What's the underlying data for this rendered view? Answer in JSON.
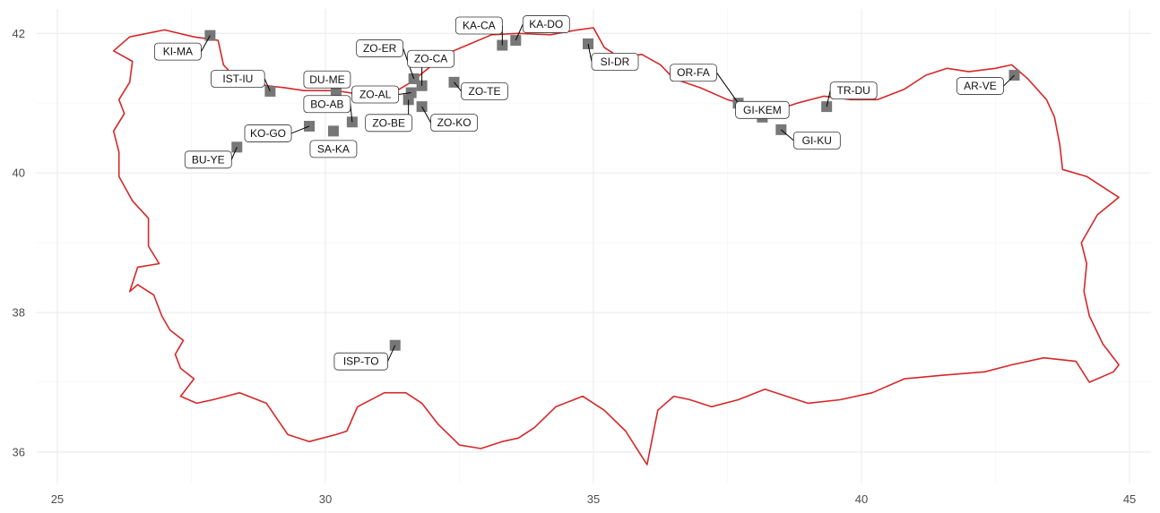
{
  "map": {
    "x_axis": {
      "min": 24.6,
      "max": 45.4,
      "ticks": [
        25,
        30,
        35,
        40,
        45
      ],
      "minor": [
        27.5,
        32.5,
        37.5,
        42.5
      ]
    },
    "y_axis": {
      "min": 35.55,
      "max": 42.35,
      "ticks": [
        36,
        38,
        40,
        42
      ],
      "minor": [
        37,
        39,
        41
      ]
    },
    "outline_color": "#d62728",
    "marker_color": "#777777",
    "outline": [
      [
        26.05,
        40.6
      ],
      [
        26.25,
        40.85
      ],
      [
        26.15,
        41.05
      ],
      [
        26.35,
        41.3
      ],
      [
        26.4,
        41.6
      ],
      [
        26.05,
        41.75
      ],
      [
        26.35,
        41.95
      ],
      [
        27.0,
        42.05
      ],
      [
        27.55,
        41.95
      ],
      [
        28.0,
        41.9
      ],
      [
        28.1,
        41.55
      ],
      [
        28.3,
        41.38
      ],
      [
        28.9,
        41.25
      ],
      [
        29.25,
        41.22
      ],
      [
        29.6,
        41.18
      ],
      [
        30.2,
        41.18
      ],
      [
        30.7,
        41.12
      ],
      [
        31.2,
        41.12
      ],
      [
        31.6,
        41.3
      ],
      [
        32.0,
        41.55
      ],
      [
        32.3,
        41.72
      ],
      [
        32.7,
        41.85
      ],
      [
        33.1,
        41.98
      ],
      [
        33.6,
        42.0
      ],
      [
        34.2,
        41.98
      ],
      [
        34.7,
        42.05
      ],
      [
        35.0,
        42.08
      ],
      [
        35.2,
        41.8
      ],
      [
        35.5,
        41.65
      ],
      [
        35.9,
        41.7
      ],
      [
        36.25,
        41.55
      ],
      [
        36.5,
        41.35
      ],
      [
        37.0,
        41.22
      ],
      [
        37.5,
        41.05
      ],
      [
        38.0,
        40.95
      ],
      [
        38.4,
        40.9
      ],
      [
        38.8,
        41.0
      ],
      [
        39.3,
        41.1
      ],
      [
        39.8,
        41.05
      ],
      [
        40.3,
        41.05
      ],
      [
        40.8,
        41.2
      ],
      [
        41.2,
        41.4
      ],
      [
        41.6,
        41.5
      ],
      [
        42.0,
        41.45
      ],
      [
        42.5,
        41.5
      ],
      [
        42.8,
        41.55
      ],
      [
        43.1,
        41.35
      ],
      [
        43.45,
        41.05
      ],
      [
        43.6,
        40.8
      ],
      [
        43.7,
        40.4
      ],
      [
        43.75,
        40.05
      ],
      [
        44.2,
        39.95
      ],
      [
        44.5,
        39.8
      ],
      [
        44.8,
        39.65
      ],
      [
        44.4,
        39.4
      ],
      [
        44.1,
        39.0
      ],
      [
        44.2,
        38.7
      ],
      [
        44.15,
        38.3
      ],
      [
        44.25,
        37.95
      ],
      [
        44.5,
        37.55
      ],
      [
        44.8,
        37.25
      ],
      [
        44.7,
        37.15
      ],
      [
        44.25,
        37.0
      ],
      [
        44.0,
        37.3
      ],
      [
        43.4,
        37.35
      ],
      [
        42.8,
        37.25
      ],
      [
        42.3,
        37.15
      ],
      [
        41.5,
        37.1
      ],
      [
        40.8,
        37.05
      ],
      [
        40.2,
        36.85
      ],
      [
        39.6,
        36.75
      ],
      [
        39.0,
        36.7
      ],
      [
        38.6,
        36.8
      ],
      [
        38.2,
        36.9
      ],
      [
        37.7,
        36.75
      ],
      [
        37.2,
        36.65
      ],
      [
        36.8,
        36.75
      ],
      [
        36.5,
        36.8
      ],
      [
        36.2,
        36.6
      ],
      [
        36.0,
        35.82
      ],
      [
        35.85,
        36.0
      ],
      [
        35.6,
        36.3
      ],
      [
        35.2,
        36.6
      ],
      [
        34.8,
        36.8
      ],
      [
        34.3,
        36.65
      ],
      [
        33.9,
        36.35
      ],
      [
        33.6,
        36.2
      ],
      [
        33.3,
        36.15
      ],
      [
        32.9,
        36.05
      ],
      [
        32.5,
        36.1
      ],
      [
        32.1,
        36.4
      ],
      [
        31.8,
        36.7
      ],
      [
        31.5,
        36.85
      ],
      [
        31.1,
        36.85
      ],
      [
        30.6,
        36.65
      ],
      [
        30.4,
        36.3
      ],
      [
        30.2,
        36.25
      ],
      [
        29.7,
        36.15
      ],
      [
        29.3,
        36.25
      ],
      [
        28.9,
        36.7
      ],
      [
        28.4,
        36.85
      ],
      [
        27.9,
        36.75
      ],
      [
        27.6,
        36.7
      ],
      [
        27.3,
        36.8
      ],
      [
        27.45,
        36.95
      ],
      [
        27.55,
        37.05
      ],
      [
        27.3,
        37.2
      ],
      [
        27.2,
        37.4
      ],
      [
        27.35,
        37.6
      ],
      [
        27.1,
        37.75
      ],
      [
        26.95,
        37.95
      ],
      [
        26.8,
        38.25
      ],
      [
        26.5,
        38.4
      ],
      [
        26.35,
        38.3
      ],
      [
        26.5,
        38.65
      ],
      [
        26.9,
        38.7
      ],
      [
        26.7,
        38.95
      ],
      [
        26.7,
        39.35
      ],
      [
        26.4,
        39.6
      ],
      [
        26.15,
        39.95
      ],
      [
        26.15,
        40.3
      ],
      [
        26.05,
        40.6
      ]
    ],
    "sites": [
      {
        "id": "KI-MA",
        "lon": 27.85,
        "lat": 41.97
      },
      {
        "id": "IST-IU",
        "lon": 28.97,
        "lat": 41.17
      },
      {
        "id": "BU-YE",
        "lon": 28.35,
        "lat": 40.37
      },
      {
        "id": "KO-GO",
        "lon": 29.7,
        "lat": 40.67
      },
      {
        "id": "DU-ME",
        "lon": 30.2,
        "lat": 41.16
      },
      {
        "id": "BO-AB",
        "lon": 30.5,
        "lat": 40.73
      },
      {
        "id": "SA-KA",
        "lon": 30.15,
        "lat": 40.6
      },
      {
        "id": "ZO-ER",
        "lon": 31.65,
        "lat": 41.35
      },
      {
        "id": "ZO-CA",
        "lon": 31.8,
        "lat": 41.25
      },
      {
        "id": "ZO-AL",
        "lon": 31.6,
        "lat": 41.15
      },
      {
        "id": "ZO-BE",
        "lon": 31.55,
        "lat": 41.05
      },
      {
        "id": "ZO-KO",
        "lon": 31.8,
        "lat": 40.95
      },
      {
        "id": "ZO-TE",
        "lon": 32.4,
        "lat": 41.3
      },
      {
        "id": "KA-CA",
        "lon": 33.3,
        "lat": 41.83
      },
      {
        "id": "KA-DO",
        "lon": 33.55,
        "lat": 41.9
      },
      {
        "id": "SI-DR",
        "lon": 34.9,
        "lat": 41.85
      },
      {
        "id": "OR-FA",
        "lon": 37.7,
        "lat": 41.0
      },
      {
        "id": "GI-KEM",
        "lon": 38.15,
        "lat": 40.8
      },
      {
        "id": "GI-KU",
        "lon": 38.5,
        "lat": 40.62
      },
      {
        "id": "TR-DU",
        "lon": 39.35,
        "lat": 40.95
      },
      {
        "id": "AR-VE",
        "lon": 42.85,
        "lat": 41.4
      },
      {
        "id": "ISP-TO",
        "lon": 31.3,
        "lat": 37.53
      }
    ]
  }
}
